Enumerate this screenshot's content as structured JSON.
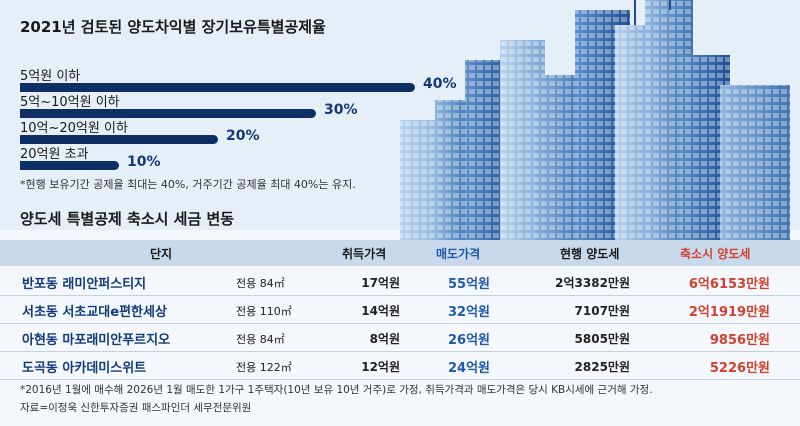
{
  "chart_data": [
    {
      "type": "bar",
      "orientation": "horizontal",
      "title": "2021년 검토된 양도차익별 장기보유특별공제율",
      "categories": [
        "5억원 이하",
        "5억~10억원 이하",
        "10억~20억원 이하",
        "20억원 초과"
      ],
      "values": [
        40,
        30,
        20,
        10
      ],
      "value_labels": [
        "40%",
        "30%",
        "20%",
        "10%"
      ],
      "xlim": [
        0,
        40
      ],
      "color": "#0d2f66",
      "note": "*현행 보유기간 공제율 최대는 40%, 거주기간 공제율 최대 40%는 유지."
    },
    {
      "type": "table",
      "title": "양도세 특별공제 축소시 세금 변동",
      "columns": [
        "단지",
        "취득가격",
        "매도가격",
        "현행 양도세",
        "축소시 양도세"
      ],
      "rows": [
        {
          "name": "반포동 래미안퍼스티지",
          "area": "전용 84㎡",
          "acq": "17억원",
          "sale": "55억원",
          "cur": "2억3382만원",
          "red": "6억6153만원"
        },
        {
          "name": "서초동 서초교대e편한세상",
          "area": "전용 110㎡",
          "acq": "14억원",
          "sale": "32억원",
          "cur": "7107만원",
          "red": "2억1919만원"
        },
        {
          "name": "아현동 마포래미안푸르지오",
          "area": "전용 84㎡",
          "acq": "8억원",
          "sale": "26억원",
          "cur": "5805만원",
          "red": "9856만원"
        },
        {
          "name": "도곡동 아카데미스위트",
          "area": "전용 122㎡",
          "acq": "12억원",
          "sale": "24억원",
          "cur": "2825만원",
          "red": "5226만원"
        }
      ],
      "note": "*2016년 1월에 매수해 2026년 1월 매도한 1가구 1주택자(10년 보유 10년 거주)로 가정, 취득가격과 매도가격은 당시 KB시세에 근거해 가정.",
      "source": "자료=이정욱 신한투자증권 패스파인더 세무전문위원"
    }
  ],
  "colors": {
    "accent_navy": "#0d2f66",
    "sale_blue": "#1e5aa8",
    "reduced_red": "#d0412f",
    "header_bg": "#c9d9ec"
  }
}
